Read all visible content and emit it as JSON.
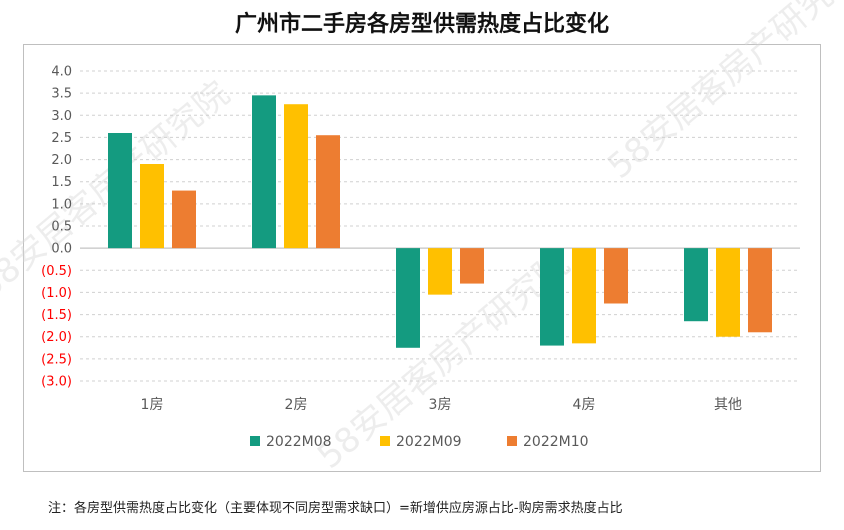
{
  "chart_data": {
    "type": "bar",
    "title": "广州市二手房各房型供需热度占比变化",
    "categories": [
      "1房",
      "2房",
      "3房",
      "4房",
      "其他"
    ],
    "series": [
      {
        "name": "2022M08",
        "color": "#149b80",
        "values": [
          2.6,
          3.45,
          -2.25,
          -2.2,
          -1.65
        ]
      },
      {
        "name": "2022M09",
        "color": "#ffc000",
        "values": [
          1.9,
          3.25,
          -1.05,
          -2.15,
          -2.0
        ]
      },
      {
        "name": "2022M10",
        "color": "#ed7d31",
        "values": [
          1.3,
          2.55,
          -0.8,
          -1.25,
          -1.9
        ]
      }
    ],
    "ylim": [
      -3.0,
      4.0
    ],
    "yticks": [
      "4.0",
      "3.5",
      "3.0",
      "2.5",
      "2.0",
      "1.5",
      "1.0",
      "0.5",
      "0.0",
      "(0.5)",
      "(1.0)",
      "(1.5)",
      "(2.0)",
      "(2.5)",
      "(3.0)"
    ],
    "negative_tick_color": "#ff0000",
    "positive_tick_color": "#595959",
    "grid": "horizontal dashed",
    "legend_position": "bottom"
  },
  "note": "注：各房型供需热度占比变化（主要体现不同房型需求缺口）=新增供应房源占比-购房需求热度占比",
  "watermark": "58安居客房产研究院"
}
